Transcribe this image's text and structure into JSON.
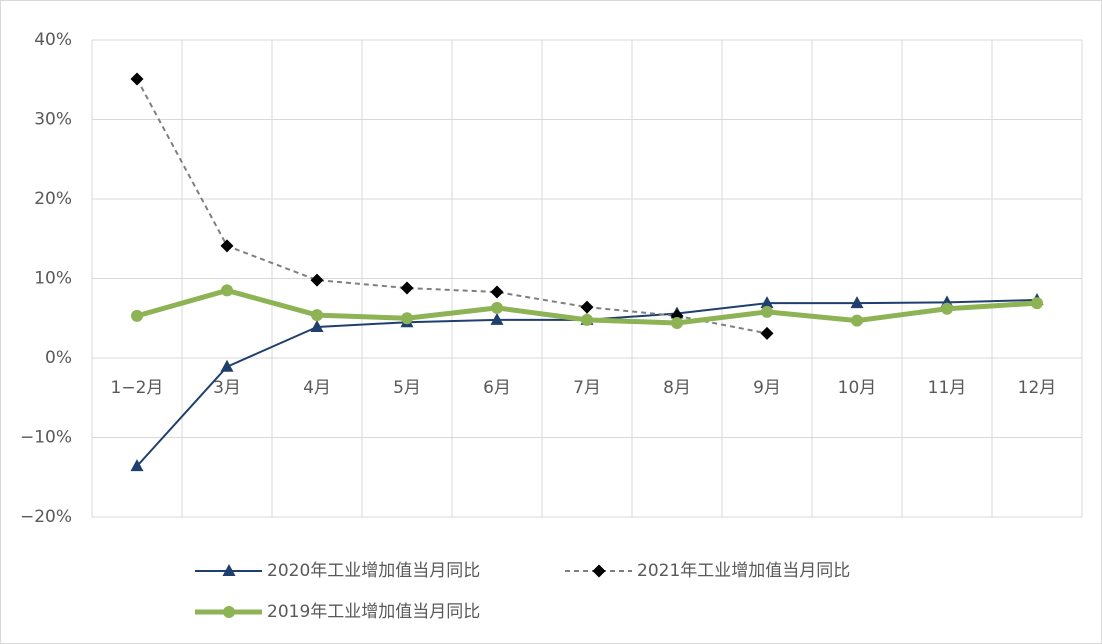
{
  "chart_data": {
    "type": "line",
    "categories": [
      "1−2月",
      "3月",
      "4月",
      "5月",
      "6月",
      "7月",
      "8月",
      "9月",
      "10月",
      "11月",
      "12月"
    ],
    "series": [
      {
        "name": "2020年工业增加值当月同比",
        "color": "#1f3f6e",
        "marker": "triangle",
        "line_style": "solid",
        "line_width": 2,
        "values": [
          -13.6,
          -1.1,
          3.9,
          4.5,
          4.8,
          4.8,
          5.6,
          6.9,
          6.9,
          7.0,
          7.3
        ]
      },
      {
        "name": "2021年工业增加值当月同比",
        "color": "#7f7f7f",
        "marker_color": "#000000",
        "marker": "diamond",
        "line_style": "dashed",
        "line_width": 2,
        "values": [
          35.1,
          14.1,
          9.8,
          8.8,
          8.3,
          6.4,
          5.3,
          3.1,
          null,
          null,
          null
        ]
      },
      {
        "name": "2019年工业增加值当月同比",
        "color": "#8db355",
        "marker": "circle",
        "line_style": "solid",
        "line_width": 5,
        "values": [
          5.3,
          8.5,
          5.4,
          5.0,
          6.3,
          4.8,
          4.4,
          5.8,
          4.7,
          6.2,
          6.9
        ]
      }
    ],
    "ylim": [
      -20,
      40
    ],
    "yticks": [
      {
        "value": -20,
        "label": "−20%"
      },
      {
        "value": -10,
        "label": "−10%"
      },
      {
        "value": 0,
        "label": "0%"
      },
      {
        "value": 10,
        "label": "10%"
      },
      {
        "value": 20,
        "label": "20%"
      },
      {
        "value": 30,
        "label": "30%"
      },
      {
        "value": 40,
        "label": "40%"
      }
    ],
    "grid": true
  }
}
